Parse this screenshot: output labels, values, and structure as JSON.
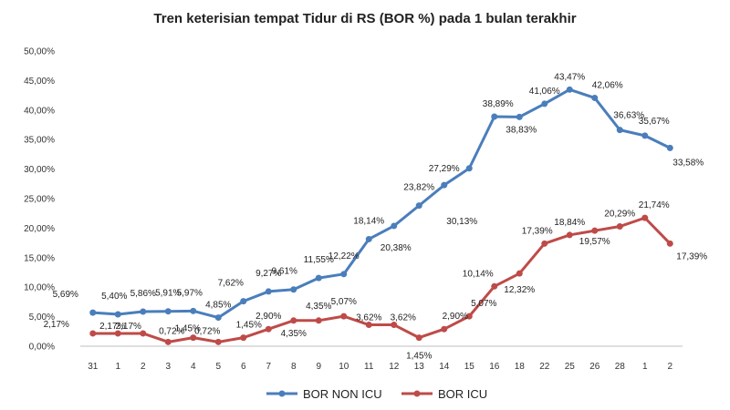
{
  "chart_data": {
    "type": "line",
    "title": "Tren keterisian tempat Tidur di RS (BOR %) pada 1 bulan terakhir",
    "xlabel": "",
    "ylabel": "",
    "categories": [
      "31",
      "1",
      "2",
      "3",
      "4",
      "5",
      "6",
      "7",
      "8",
      "9",
      "10",
      "11",
      "12",
      "13",
      "14",
      "15",
      "16",
      "18",
      "22",
      "25",
      "26",
      "28",
      "1",
      "2"
    ],
    "ylim": [
      0,
      50
    ],
    "yticks": [
      "0,00%",
      "5,00%",
      "10,00%",
      "15,00%",
      "20,00%",
      "25,00%",
      "30,00%",
      "35,00%",
      "40,00%",
      "45,00%",
      "50,00%"
    ],
    "grid": false,
    "legend_position": "bottom",
    "series": [
      {
        "name": "BOR NON ICU",
        "color": "#4a7ebb",
        "values": [
          5.69,
          5.4,
          5.86,
          5.91,
          5.97,
          4.85,
          7.62,
          9.27,
          9.61,
          11.55,
          12.22,
          18.14,
          20.38,
          23.82,
          27.29,
          30.13,
          38.89,
          38.83,
          41.06,
          43.47,
          42.06,
          36.63,
          35.67,
          33.58
        ],
        "labels": [
          "5,69%",
          "5,40%",
          "5,86%",
          "5,91%",
          "5,97%",
          "4,85%",
          "7,62%",
          "9,27%",
          "9,61%",
          "11,55%",
          "12,22%",
          "18,14%",
          "20,38%",
          "23,82%",
          "27,29%",
          "30,13%",
          "38,89%",
          "38,83%",
          "41,06%",
          "43,47%",
          "42,06%",
          "36,63%",
          "35,67%",
          "33,58%"
        ]
      },
      {
        "name": "BOR ICU",
        "color": "#be4b48",
        "values": [
          2.17,
          2.17,
          2.17,
          0.72,
          1.45,
          0.72,
          1.45,
          2.9,
          4.35,
          4.35,
          5.07,
          3.62,
          3.62,
          1.45,
          2.9,
          5.07,
          10.14,
          12.32,
          17.39,
          18.84,
          19.57,
          20.29,
          21.74,
          17.39
        ],
        "labels": [
          "2,17%",
          "2,17%",
          "2,17%",
          "0,72%",
          "1,45%",
          "0,72%",
          "1,45%",
          "2,90%",
          "4,35%",
          "4,35%",
          "5,07%",
          "3,62%",
          "3,62%",
          "1,45%",
          "2,90%",
          "5,07%",
          "10,14%",
          "12,32%",
          "17,39%",
          "18,84%",
          "19,57%",
          "20,29%",
          "21,74%",
          "17,39%"
        ]
      }
    ]
  }
}
